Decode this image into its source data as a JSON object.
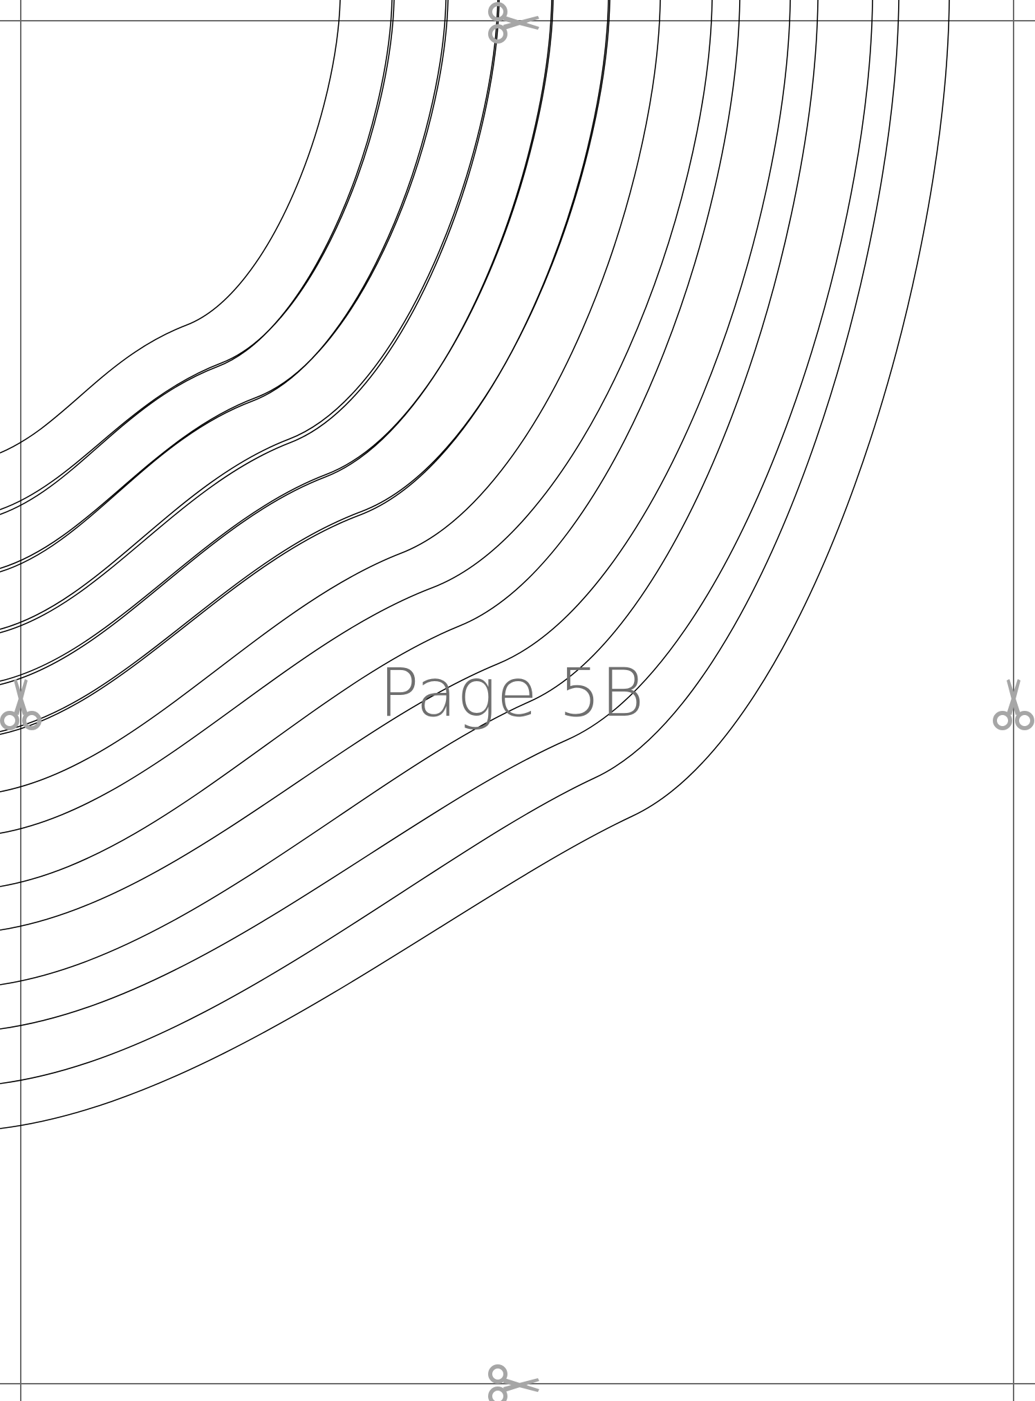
{
  "page": {
    "label": "Page 5B",
    "label_color": "#6f6f6f",
    "trim_line_color": "#6a6a6a",
    "pattern_line_color": "#000000",
    "scissors_color": "#a6a6a6"
  },
  "icons": [
    "scissors-icon"
  ]
}
